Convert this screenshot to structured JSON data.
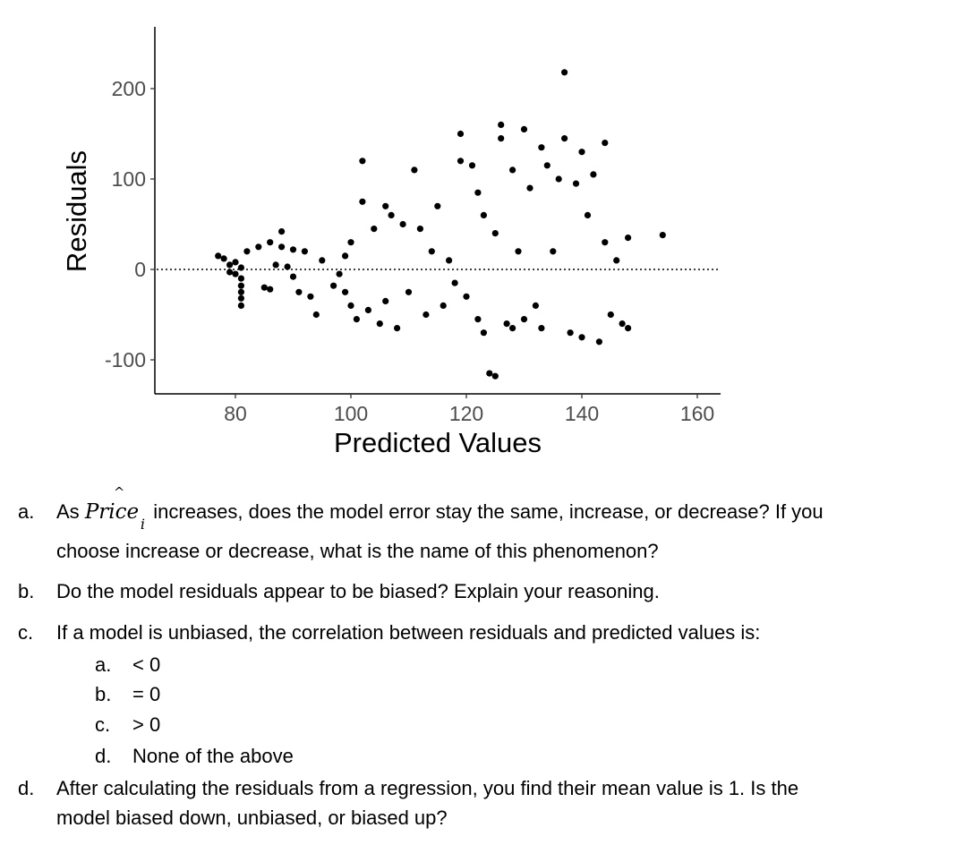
{
  "chart_data": {
    "type": "scatter",
    "title": "",
    "xlabel": "Predicted Values",
    "ylabel": "Residuals",
    "xlim": [
      65,
      165
    ],
    "ylim": [
      -140,
      270
    ],
    "x_ticks": [
      80,
      100,
      120,
      140,
      160
    ],
    "y_ticks": [
      200,
      100,
      0,
      -100
    ],
    "x_tick_labels": [
      "80",
      "100",
      "120",
      "140",
      "160"
    ],
    "y_tick_labels": [
      "200",
      "100",
      "0",
      "-100"
    ],
    "reference_line": {
      "y": 0,
      "style": "dotted"
    },
    "grid": false,
    "point_color": "#000000",
    "points": [
      [
        77,
        15
      ],
      [
        78,
        12
      ],
      [
        79,
        5
      ],
      [
        79,
        -3
      ],
      [
        80,
        8
      ],
      [
        80,
        -5
      ],
      [
        81,
        2
      ],
      [
        81,
        -10
      ],
      [
        81,
        -18
      ],
      [
        81,
        -25
      ],
      [
        81,
        -32
      ],
      [
        81,
        -40
      ],
      [
        82,
        20
      ],
      [
        84,
        25
      ],
      [
        85,
        -20
      ],
      [
        86,
        30
      ],
      [
        86,
        -22
      ],
      [
        87,
        5
      ],
      [
        88,
        42
      ],
      [
        88,
        25
      ],
      [
        89,
        3
      ],
      [
        90,
        -8
      ],
      [
        90,
        22
      ],
      [
        91,
        -25
      ],
      [
        92,
        20
      ],
      [
        93,
        -30
      ],
      [
        94,
        -50
      ],
      [
        95,
        10
      ],
      [
        97,
        -18
      ],
      [
        98,
        -5
      ],
      [
        99,
        15
      ],
      [
        99,
        -25
      ],
      [
        100,
        30
      ],
      [
        100,
        -40
      ],
      [
        101,
        -55
      ],
      [
        102,
        120
      ],
      [
        102,
        75
      ],
      [
        103,
        -45
      ],
      [
        104,
        45
      ],
      [
        105,
        -60
      ],
      [
        106,
        70
      ],
      [
        106,
        -35
      ],
      [
        107,
        60
      ],
      [
        108,
        -65
      ],
      [
        109,
        50
      ],
      [
        110,
        -25
      ],
      [
        111,
        110
      ],
      [
        112,
        45
      ],
      [
        113,
        -50
      ],
      [
        114,
        20
      ],
      [
        115,
        70
      ],
      [
        116,
        -40
      ],
      [
        117,
        10
      ],
      [
        118,
        -15
      ],
      [
        119,
        150
      ],
      [
        119,
        120
      ],
      [
        120,
        -30
      ],
      [
        121,
        115
      ],
      [
        122,
        85
      ],
      [
        122,
        -55
      ],
      [
        123,
        60
      ],
      [
        123,
        -70
      ],
      [
        124,
        -115
      ],
      [
        125,
        -118
      ],
      [
        125,
        40
      ],
      [
        126,
        160
      ],
      [
        126,
        145
      ],
      [
        127,
        -60
      ],
      [
        128,
        110
      ],
      [
        128,
        -65
      ],
      [
        129,
        20
      ],
      [
        130,
        155
      ],
      [
        130,
        -55
      ],
      [
        131,
        90
      ],
      [
        132,
        -40
      ],
      [
        133,
        135
      ],
      [
        133,
        -65
      ],
      [
        134,
        115
      ],
      [
        135,
        20
      ],
      [
        136,
        100
      ],
      [
        137,
        218
      ],
      [
        137,
        145
      ],
      [
        138,
        -70
      ],
      [
        139,
        95
      ],
      [
        140,
        130
      ],
      [
        140,
        -75
      ],
      [
        141,
        60
      ],
      [
        142,
        105
      ],
      [
        143,
        -80
      ],
      [
        144,
        140
      ],
      [
        144,
        30
      ],
      [
        145,
        -50
      ],
      [
        146,
        10
      ],
      [
        147,
        -60
      ],
      [
        148,
        35
      ],
      [
        148,
        -65
      ],
      [
        154,
        38
      ]
    ]
  },
  "questions": [
    {
      "label": "a.",
      "text_before": "As",
      "price_term": {
        "word": "Price",
        "hat": "^",
        "subscript": "i"
      },
      "text_after": "increases, does the model error stay the same, increase, or decrease?  If you",
      "text_line2": "choose increase or decrease, what is the name of this phenomenon?"
    },
    {
      "label": "b.",
      "text": "Do the model residuals appear to be biased?  Explain your reasoning."
    },
    {
      "label": "c.",
      "text": "If a model is unbiased, the correlation between residuals and predicted values is:",
      "options": [
        {
          "label": "a.",
          "text": "< 0"
        },
        {
          "label": "b.",
          "text": "= 0"
        },
        {
          "label": "c.",
          "text": "> 0"
        },
        {
          "label": "d.",
          "text": "None of the above"
        }
      ]
    },
    {
      "label": "d.",
      "text_line1": "After calculating the residuals from a regression, you find their mean value is 1.  Is the",
      "text_line2": "model biased down, unbiased, or biased up?"
    }
  ]
}
